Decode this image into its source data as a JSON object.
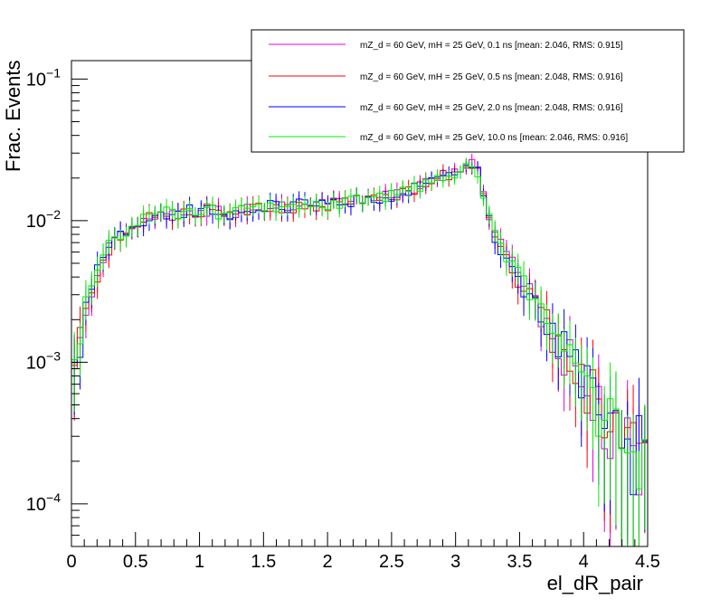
{
  "chart_data": {
    "type": "line",
    "title": "",
    "xlabel": "el_dR_pair",
    "ylabel": "Frac. Events",
    "xlim": [
      0,
      4.5
    ],
    "ylim": [
      5e-05,
      0.135
    ],
    "yscale": "log",
    "x_ticks": [
      "0",
      "0.5",
      "1",
      "1.5",
      "2",
      "2.5",
      "3",
      "3.5",
      "4",
      "4.5"
    ],
    "y_ticks": [
      {
        "base": "10",
        "exp": "−4",
        "value": 0.0001
      },
      {
        "base": "10",
        "exp": "−3",
        "value": 0.001
      },
      {
        "base": "10",
        "exp": "−2",
        "value": 0.01
      },
      {
        "base": "10",
        "exp": "−1",
        "value": 0.1
      }
    ],
    "bin_width": 0.045,
    "grid": false,
    "legend_position": "top-right",
    "series": [
      {
        "name": "mZ_d = 60 GeV, mH = 25 GeV, 0.1 ns [mean: 2.046, RMS: 0.915]",
        "color": "#e000e0"
      },
      {
        "name": "mZ_d = 60 GeV, mH = 25 GeV, 0.5 ns [mean: 2.048, RMS: 0.916]",
        "color": "#ff0000"
      },
      {
        "name": "mZ_d = 60 GeV, mH = 25 GeV, 2.0 ns [mean: 2.048, RMS: 0.916]",
        "color": "#0000ff"
      },
      {
        "name": "mZ_d = 60 GeV, mH = 25 GeV, 10.0 ns [mean: 2.046, RMS: 0.916]",
        "color": "#00ee00"
      }
    ],
    "profile": {
      "x": [
        0.0,
        0.02,
        0.045,
        0.09,
        0.135,
        0.18,
        0.225,
        0.27,
        0.315,
        0.36,
        0.45,
        0.55,
        0.65,
        0.75,
        0.85,
        0.95,
        1.05,
        1.15,
        1.25,
        1.35,
        1.45,
        1.55,
        1.65,
        1.75,
        1.85,
        1.95,
        2.05,
        2.15,
        2.25,
        2.35,
        2.45,
        2.55,
        2.65,
        2.75,
        2.85,
        2.95,
        3.05,
        3.11,
        3.15,
        3.2,
        3.25,
        3.3,
        3.4,
        3.5,
        3.6,
        3.7,
        3.8,
        3.9,
        4.0,
        4.1,
        4.2,
        4.3,
        4.4,
        4.5
      ],
      "y": [
        0.00025,
        0.0007,
        0.0011,
        0.0019,
        0.0031,
        0.0037,
        0.0047,
        0.0062,
        0.0072,
        0.0078,
        0.0087,
        0.0098,
        0.0108,
        0.0113,
        0.0115,
        0.0118,
        0.0118,
        0.0114,
        0.0111,
        0.0116,
        0.0124,
        0.0128,
        0.0126,
        0.0128,
        0.0128,
        0.0128,
        0.0131,
        0.0134,
        0.0139,
        0.0143,
        0.0148,
        0.0155,
        0.0165,
        0.0183,
        0.0205,
        0.0212,
        0.0226,
        0.0252,
        0.025,
        0.019,
        0.0115,
        0.0078,
        0.0055,
        0.0038,
        0.0028,
        0.002,
        0.0014,
        0.00105,
        0.00075,
        0.00055,
        0.00038,
        0.00025,
        0.00028,
        0.00045
      ]
    }
  }
}
